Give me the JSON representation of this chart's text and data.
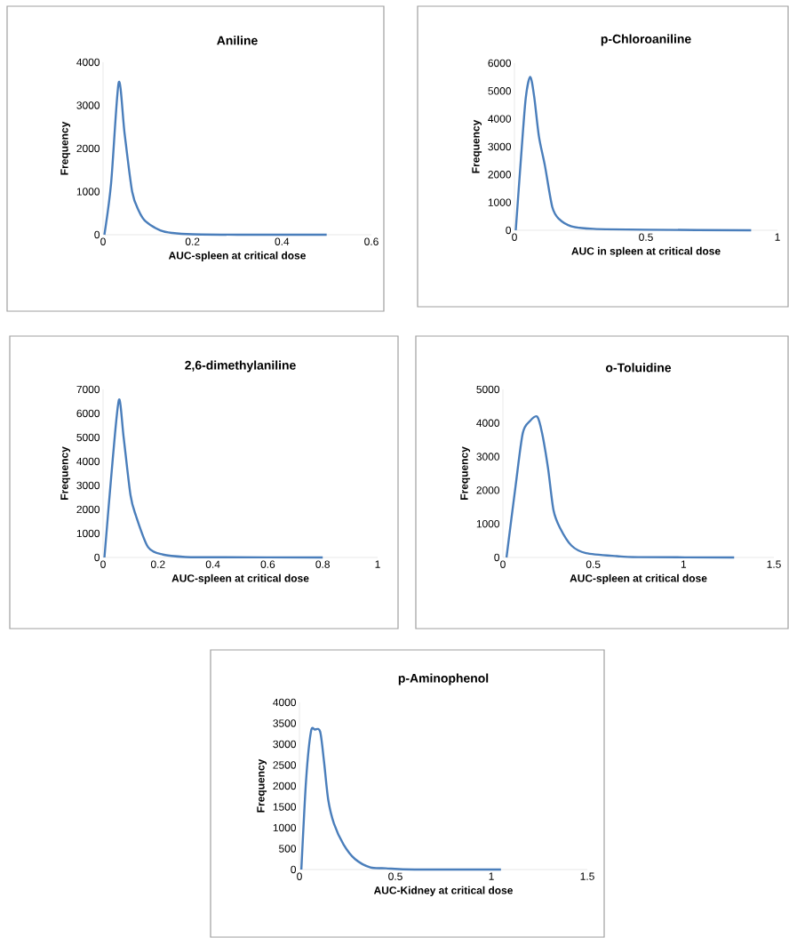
{
  "chart_data": [
    {
      "type": "line",
      "title": "Aniline",
      "xlabel": "AUC-spleen at critical dose",
      "ylabel": "Frequency",
      "xlim": [
        0,
        0.6
      ],
      "xticks": [
        0,
        0.2,
        0.4,
        0.6
      ],
      "ylim": [
        0,
        4000
      ],
      "yticks": [
        0,
        1000,
        2000,
        3000,
        4000
      ],
      "series": [
        {
          "color": "#4a7ebb",
          "x": [
            0.003,
            0.018,
            0.035,
            0.048,
            0.065,
            0.08,
            0.095,
            0.128,
            0.155,
            0.2,
            0.3,
            0.4,
            0.5
          ],
          "values": [
            0,
            1200,
            3530,
            2360,
            1000,
            550,
            310,
            100,
            40,
            10,
            0,
            0,
            0
          ]
        }
      ]
    },
    {
      "type": "line",
      "title": "p-Chloroaniline",
      "xlabel": "AUC in spleen at critical dose",
      "ylabel": "Frequency",
      "xlim": [
        0,
        1
      ],
      "xticks": [
        0,
        0.5,
        1
      ],
      "ylim": [
        0,
        6000
      ],
      "yticks": [
        0,
        1000,
        2000,
        3000,
        4000,
        5000,
        6000
      ],
      "series": [
        {
          "color": "#4a7ebb",
          "x": [
            0.005,
            0.026,
            0.043,
            0.06,
            0.075,
            0.093,
            0.116,
            0.144,
            0.17,
            0.217,
            0.3,
            0.5,
            0.9
          ],
          "values": [
            0,
            2740,
            4750,
            5510,
            4800,
            3370,
            2310,
            830,
            400,
            140,
            50,
            20,
            0
          ]
        }
      ]
    },
    {
      "type": "line",
      "title": "2,6-dimethylaniline",
      "xlabel": "AUC-spleen at critical dose",
      "ylabel": "Frequency",
      "xlim": [
        0,
        1
      ],
      "xticks": [
        0,
        0.2,
        0.4,
        0.6,
        0.8,
        1
      ],
      "ylim": [
        0,
        7000
      ],
      "yticks": [
        0,
        1000,
        2000,
        3000,
        4000,
        5000,
        6000,
        7000
      ],
      "series": [
        {
          "color": "#4a7ebb",
          "x": [
            0.005,
            0.035,
            0.058,
            0.075,
            0.1,
            0.12,
            0.164,
            0.218,
            0.3,
            0.4,
            0.8
          ],
          "values": [
            0,
            4070,
            6570,
            5000,
            2590,
            1730,
            430,
            120,
            20,
            10,
            0
          ]
        }
      ]
    },
    {
      "type": "line",
      "title": "o-Toluidine",
      "xlabel": "AUC-spleen at critical dose",
      "ylabel": "Frequency",
      "xlim": [
        0,
        1.5
      ],
      "xticks": [
        0,
        0.5,
        1,
        1.5
      ],
      "ylim": [
        0,
        5000
      ],
      "yticks": [
        0,
        1000,
        2000,
        3000,
        4000,
        5000
      ],
      "series": [
        {
          "color": "#4a7ebb",
          "x": [
            0.02,
            0.07,
            0.11,
            0.15,
            0.19,
            0.217,
            0.25,
            0.28,
            0.316,
            0.38,
            0.46,
            0.63,
            0.75,
            1.28
          ],
          "values": [
            0,
            2120,
            3700,
            4060,
            4190,
            3700,
            2650,
            1410,
            880,
            350,
            130,
            40,
            10,
            0
          ]
        }
      ]
    },
    {
      "type": "line",
      "title": "p-Aminophenol",
      "xlabel": "AUC-Kidney at critical dose",
      "ylabel": "Frequency",
      "xlim": [
        0,
        1.5
      ],
      "xticks": [
        0,
        0.5,
        1,
        1.5
      ],
      "ylim": [
        0,
        4000
      ],
      "yticks": [
        0,
        500,
        1000,
        1500,
        2000,
        2500,
        3000,
        3500,
        4000
      ],
      "series": [
        {
          "color": "#4a7ebb",
          "x": [
            0.01,
            0.035,
            0.06,
            0.08,
            0.108,
            0.128,
            0.15,
            0.18,
            0.23,
            0.29,
            0.37,
            0.45,
            0.6,
            1.05
          ],
          "values": [
            0,
            2160,
            3300,
            3350,
            3300,
            2590,
            1670,
            1100,
            600,
            250,
            50,
            30,
            0,
            0
          ]
        }
      ]
    }
  ]
}
